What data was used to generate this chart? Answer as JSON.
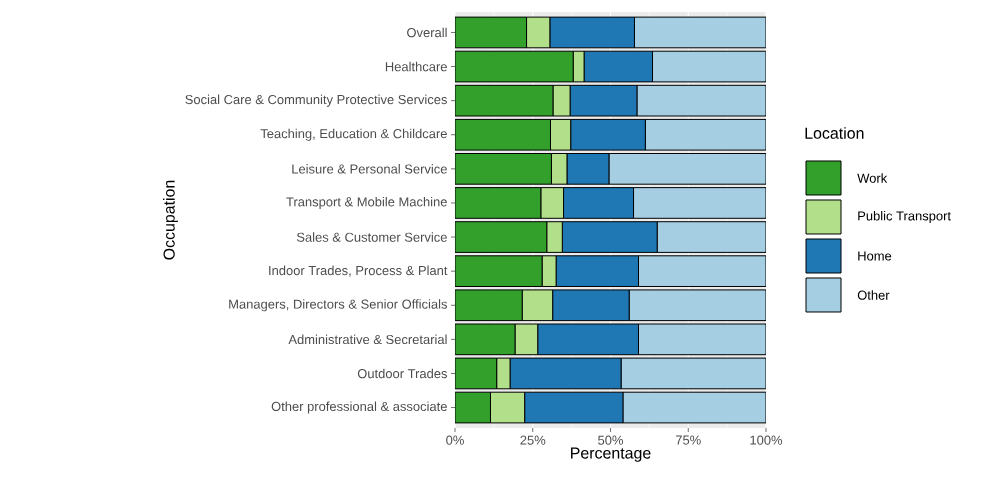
{
  "chart_data": {
    "type": "bar",
    "orientation": "horizontal",
    "stacked": true,
    "xlabel": "Percentage",
    "ylabel": "Occupation",
    "legend_title": "Location",
    "legend": "right",
    "grid": true,
    "categories": [
      "Overall",
      "Healthcare",
      "Social Care & Community Protective Services",
      "Teaching, Education & Childcare",
      "Leisure & Personal Service",
      "Transport & Mobile Machine",
      "Sales & Customer Service",
      "Indoor Trades, Process & Plant",
      "Managers, Directors & Senior Officials",
      "Administrative & Secretarial",
      "Outdoor Trades",
      "Other professional & associate"
    ],
    "xlim": [
      0,
      100
    ],
    "xticks": [
      {
        "value": 0,
        "label": "0%"
      },
      {
        "value": 25,
        "label": "25%"
      },
      {
        "value": 50,
        "label": "50%"
      },
      {
        "value": 75,
        "label": "75%"
      },
      {
        "value": 100,
        "label": "100%"
      }
    ],
    "series": [
      {
        "name": "Work",
        "color": "#33a02c",
        "values": [
          23,
          38,
          31.5,
          30.7,
          31,
          27.6,
          29.5,
          28,
          21.6,
          19.3,
          13.4,
          11.4
        ]
      },
      {
        "name": "Public Transport",
        "color": "#b2df8a",
        "values": [
          7.5,
          3.5,
          5.5,
          6.5,
          5,
          7.3,
          5,
          4.5,
          9.8,
          7.3,
          4.3,
          11
        ]
      },
      {
        "name": "Home",
        "color": "#1f78b4",
        "values": [
          27.2,
          22,
          21.5,
          24,
          13.5,
          22.5,
          30.5,
          26.5,
          24.6,
          32.4,
          35.7,
          31.6
        ]
      },
      {
        "name": "Other",
        "color": "#a6cee3",
        "values": [
          42.3,
          36.5,
          41.5,
          38.8,
          50.5,
          42.6,
          35,
          41,
          44,
          41,
          46.6,
          46
        ]
      }
    ]
  }
}
